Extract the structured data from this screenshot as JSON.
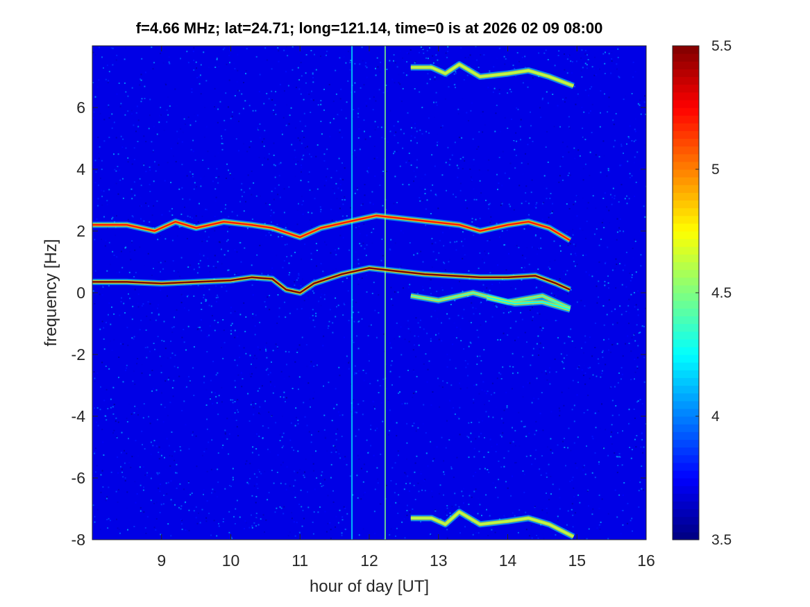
{
  "chart_data": {
    "type": "heatmap",
    "title": "f=4.66 MHz;  lat=24.71; long=121.14, time=0 is at 2026 02 09 08:00",
    "xlabel": "hour of day [UT]",
    "ylabel": "frequency [Hz]",
    "xlim": [
      8,
      16
    ],
    "ylim": [
      -8,
      8
    ],
    "xticks": [
      9,
      10,
      11,
      12,
      13,
      14,
      15,
      16
    ],
    "yticks": [
      -8,
      -6,
      -4,
      -2,
      0,
      2,
      4,
      6
    ],
    "colorbar": {
      "clim": [
        3.5,
        5.5
      ],
      "ticks": [
        3.5,
        4,
        4.5,
        5,
        5.5
      ],
      "colormap": "jet"
    },
    "background_level": 3.7,
    "traces": [
      {
        "label": "",
        "intensity": 5.5,
        "points": [
          [
            8.0,
            0.35
          ],
          [
            8.5,
            0.35
          ],
          [
            9.0,
            0.3
          ],
          [
            9.5,
            0.35
          ],
          [
            10.0,
            0.4
          ],
          [
            10.3,
            0.5
          ],
          [
            10.6,
            0.45
          ],
          [
            10.8,
            0.1
          ],
          [
            11.0,
            0.0
          ],
          [
            11.2,
            0.3
          ],
          [
            11.6,
            0.6
          ],
          [
            12.0,
            0.8
          ],
          [
            12.4,
            0.7
          ],
          [
            12.8,
            0.6
          ],
          [
            13.2,
            0.55
          ],
          [
            13.6,
            0.5
          ],
          [
            14.0,
            0.5
          ],
          [
            14.4,
            0.55
          ],
          [
            14.7,
            0.3
          ],
          [
            14.9,
            0.1
          ]
        ]
      },
      {
        "label": "",
        "intensity": 5.2,
        "points": [
          [
            8.0,
            2.2
          ],
          [
            8.5,
            2.2
          ],
          [
            8.9,
            2.0
          ],
          [
            9.2,
            2.3
          ],
          [
            9.5,
            2.1
          ],
          [
            9.9,
            2.3
          ],
          [
            10.3,
            2.2
          ],
          [
            10.6,
            2.1
          ],
          [
            11.0,
            1.8
          ],
          [
            11.3,
            2.1
          ],
          [
            11.7,
            2.3
          ],
          [
            12.1,
            2.5
          ],
          [
            12.5,
            2.4
          ],
          [
            12.9,
            2.3
          ],
          [
            13.3,
            2.2
          ],
          [
            13.6,
            2.0
          ],
          [
            14.0,
            2.2
          ],
          [
            14.3,
            2.3
          ],
          [
            14.6,
            2.1
          ],
          [
            14.9,
            1.7
          ]
        ]
      },
      {
        "label": "",
        "intensity": 4.6,
        "points": [
          [
            12.6,
            7.3
          ],
          [
            12.9,
            7.3
          ],
          [
            13.1,
            7.1
          ],
          [
            13.3,
            7.4
          ],
          [
            13.6,
            7.0
          ],
          [
            14.0,
            7.1
          ],
          [
            14.3,
            7.2
          ],
          [
            14.6,
            7.0
          ],
          [
            14.95,
            6.7
          ]
        ]
      },
      {
        "label": "",
        "intensity": 4.6,
        "points": [
          [
            12.6,
            -7.3
          ],
          [
            12.9,
            -7.3
          ],
          [
            13.1,
            -7.5
          ],
          [
            13.3,
            -7.1
          ],
          [
            13.6,
            -7.5
          ],
          [
            14.0,
            -7.4
          ],
          [
            14.3,
            -7.3
          ],
          [
            14.6,
            -7.5
          ],
          [
            14.95,
            -7.9
          ]
        ]
      },
      {
        "label": "",
        "intensity": 4.4,
        "points": [
          [
            12.6,
            -0.1
          ],
          [
            13.0,
            -0.25
          ],
          [
            13.5,
            0.0
          ],
          [
            14.0,
            -0.3
          ],
          [
            14.5,
            -0.1
          ],
          [
            14.9,
            -0.5
          ]
        ]
      },
      {
        "label": "",
        "intensity": 4.3,
        "points": [
          [
            13.7,
            -0.15
          ],
          [
            14.1,
            -0.35
          ],
          [
            14.5,
            -0.3
          ],
          [
            14.9,
            -0.55
          ]
        ]
      }
    ],
    "vertical_lines": [
      {
        "x": 11.75,
        "intensity": 4.2
      },
      {
        "x": 12.23,
        "intensity": 4.5
      }
    ]
  }
}
